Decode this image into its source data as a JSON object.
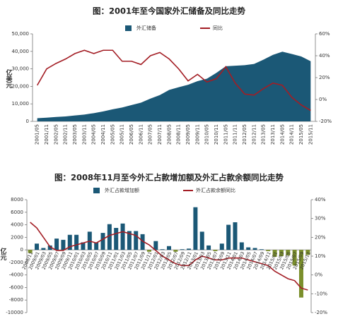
{
  "chart_data": [
    {
      "type": "combo",
      "title": "图：2001年至今国家外汇储备及同比走势",
      "ylabel": "亿美元",
      "categories": [
        "2001/05",
        "2001/11",
        "2002/05",
        "2002/11",
        "2003/05",
        "2003/11",
        "2004/05",
        "2004/11",
        "2005/05",
        "2005/11",
        "2006/05",
        "2006/11",
        "2007/05",
        "2007/11",
        "2008/05",
        "2008/11",
        "2009/05",
        "2009/11",
        "2010/05",
        "2010/11",
        "2011/05",
        "2011/11",
        "2012/05",
        "2012/11",
        "2013/05",
        "2013/11",
        "2014/05",
        "2014/11",
        "2015/05",
        "2015/11"
      ],
      "series": [
        {
          "name": "外汇储备",
          "type": "area",
          "color": "#1b5876",
          "axis": "y",
          "values": [
            1800,
            2100,
            2500,
            2800,
            3400,
            3900,
            4700,
            5700,
            6900,
            7900,
            9300,
            10700,
            13000,
            15000,
            18000,
            19500,
            20900,
            23000,
            24400,
            27700,
            31500,
            31800,
            32100,
            32800,
            35300,
            38000,
            39800,
            38500,
            37100,
            34400
          ]
        },
        {
          "name": "同比",
          "type": "line",
          "color": "#a31d24",
          "axis": "y2",
          "values": [
            13,
            28,
            33,
            37,
            42,
            45,
            42,
            45,
            45,
            35,
            35,
            32,
            40,
            43,
            37,
            28,
            17,
            23,
            16,
            19,
            30,
            15,
            5,
            4,
            10,
            15,
            13,
            2,
            -5,
            -10
          ]
        }
      ],
      "ylim": [
        0,
        50000
      ],
      "yticks": [
        0,
        {
          "value": 10000,
          "label": "10,000"
        },
        {
          "value": 20000,
          "label": "20,000"
        },
        {
          "value": 30000,
          "label": "30,000"
        },
        {
          "value": 40000,
          "label": "40,000"
        },
        {
          "value": 50000,
          "label": "50,000"
        }
      ],
      "y2lim": [
        -20,
        60
      ],
      "y2ticks": [
        {
          "value": -20,
          "label": "-20%"
        },
        {
          "value": 0,
          "label": "0%"
        },
        {
          "value": 20,
          "label": "20%"
        },
        {
          "value": 40,
          "label": "40%"
        },
        {
          "value": 60,
          "label": "60%"
        }
      ]
    },
    {
      "type": "combo",
      "title": "图：2008年11月至今外汇占款增加额及外汇占款余额同比走势",
      "ylabel": "亿元",
      "categories": [
        "2008/11",
        "2009/01",
        "2009/03",
        "2009/05",
        "2009/07",
        "2009/09",
        "2009/11",
        "2010/01",
        "2010/03",
        "2010/05",
        "2010/07",
        "2010/09",
        "2010/11",
        "2011/01",
        "2011/03",
        "2011/05",
        "2011/07",
        "2011/09",
        "2011/11",
        "2012/01",
        "2012/03",
        "2012/05",
        "2012/07",
        "2012/09",
        "2012/11",
        "2013/01",
        "2013/03",
        "2013/05",
        "2013/07",
        "2013/09",
        "2013/11",
        "2014/01",
        "2014/03",
        "2014/05",
        "2014/07",
        "2014/09",
        "2014/11",
        "2015/01",
        "2015/03",
        "2015/05",
        "2015/07",
        "2015/09",
        "2015/11"
      ],
      "series": [
        {
          "name": "外汇占款增加额",
          "type": "bar",
          "color": "#1b5876",
          "negative_color": "#7b8f2c",
          "axis": "y",
          "values": [
            -500,
            1000,
            300,
            700,
            1800,
            1600,
            2400,
            2400,
            1200,
            2900,
            1200,
            2700,
            4100,
            3500,
            4200,
            3000,
            3000,
            2500,
            -300,
            1400,
            100,
            600,
            -300,
            100,
            200,
            6800,
            2900,
            700,
            -200,
            1000,
            4000,
            4400,
            1200,
            400,
            300,
            100,
            -200,
            -1100,
            -1000,
            -900,
            -2500,
            -7600,
            -800
          ]
        },
        {
          "name": "外汇占款余额同比",
          "type": "line",
          "color": "#a31d24",
          "axis": "y2",
          "values": [
            28,
            25,
            20,
            15,
            13,
            13,
            15,
            16,
            17,
            18,
            17,
            19,
            21,
            22,
            23,
            22,
            21,
            18,
            16,
            13,
            10,
            8,
            6,
            5,
            5,
            8,
            10,
            9,
            8,
            8,
            9,
            9,
            9,
            8,
            7,
            6,
            5,
            2,
            0,
            -2,
            -3,
            -7,
            -8
          ]
        }
      ],
      "ylim": [
        -10000,
        8000
      ],
      "yticks": [
        {
          "value": -10000,
          "label": "-10000"
        },
        {
          "value": -8000,
          "label": "-8000"
        },
        {
          "value": -6000,
          "label": "-6000"
        },
        {
          "value": -4000,
          "label": "-4000"
        },
        {
          "value": -2000,
          "label": "-2000"
        },
        0,
        2000,
        4000,
        6000,
        8000
      ],
      "y2lim": [
        -20,
        40
      ],
      "y2ticks": [
        {
          "value": -20,
          "label": "-20%"
        },
        {
          "value": -10,
          "label": "-10%"
        },
        {
          "value": 0,
          "label": "0%"
        },
        {
          "value": 10,
          "label": "10%"
        },
        {
          "value": 20,
          "label": "20%"
        },
        {
          "value": 30,
          "label": "30%"
        },
        {
          "value": 40,
          "label": "40%"
        }
      ]
    }
  ]
}
